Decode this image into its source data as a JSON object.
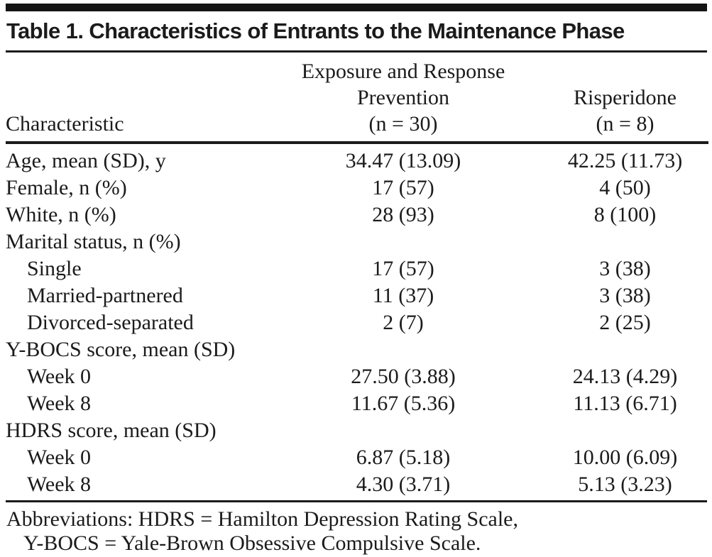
{
  "table": {
    "title": "Table 1. Characteristics of Entrants to the Maintenance Phase",
    "header": {
      "characteristic": "Characteristic",
      "erp_line1": "Exposure and Response",
      "erp_line2": "Prevention",
      "erp_line3": "(n = 30)",
      "risp_line1": "Risperidone",
      "risp_line2": "(n = 8)"
    },
    "rows": [
      {
        "label": "Age, mean (SD), y",
        "indent": false,
        "erp": "34.47 (13.09)",
        "risp": "42.25 (11.73)"
      },
      {
        "label": "Female, n (%)",
        "indent": false,
        "erp": "17 (57)",
        "risp": "4 (50)"
      },
      {
        "label": "White, n (%)",
        "indent": false,
        "erp": "28 (93)",
        "risp": "8 (100)"
      },
      {
        "label": "Marital status, n (%)",
        "indent": false,
        "erp": "",
        "risp": ""
      },
      {
        "label": "Single",
        "indent": true,
        "erp": "17 (57)",
        "risp": "3 (38)"
      },
      {
        "label": "Married-partnered",
        "indent": true,
        "erp": "11 (37)",
        "risp": "3 (38)"
      },
      {
        "label": "Divorced-separated",
        "indent": true,
        "erp": "2 (7)",
        "risp": "2 (25)"
      },
      {
        "label": "Y-BOCS score, mean (SD)",
        "indent": false,
        "erp": "",
        "risp": ""
      },
      {
        "label": "Week 0",
        "indent": true,
        "erp": "27.50 (3.88)",
        "risp": "24.13 (4.29)"
      },
      {
        "label": "Week 8",
        "indent": true,
        "erp": "11.67 (5.36)",
        "risp": "11.13 (6.71)"
      },
      {
        "label": "HDRS score, mean (SD)",
        "indent": false,
        "erp": "",
        "risp": ""
      },
      {
        "label": "Week 0",
        "indent": true,
        "erp": "6.87 (5.18)",
        "risp": "10.00 (6.09)"
      },
      {
        "label": "Week 8",
        "indent": true,
        "erp": "4.30 (3.71)",
        "risp": "5.13 (3.23)"
      }
    ],
    "footnote": {
      "line1": "Abbreviations: HDRS = Hamilton Depression Rating Scale,",
      "line2": "Y-BOCS = Yale-Brown Obsessive Compulsive Scale."
    },
    "colors": {
      "text": "#1b1b1b",
      "rule": "#1b1b1b",
      "top_bar": "#141414",
      "background": "#ffffff"
    }
  }
}
